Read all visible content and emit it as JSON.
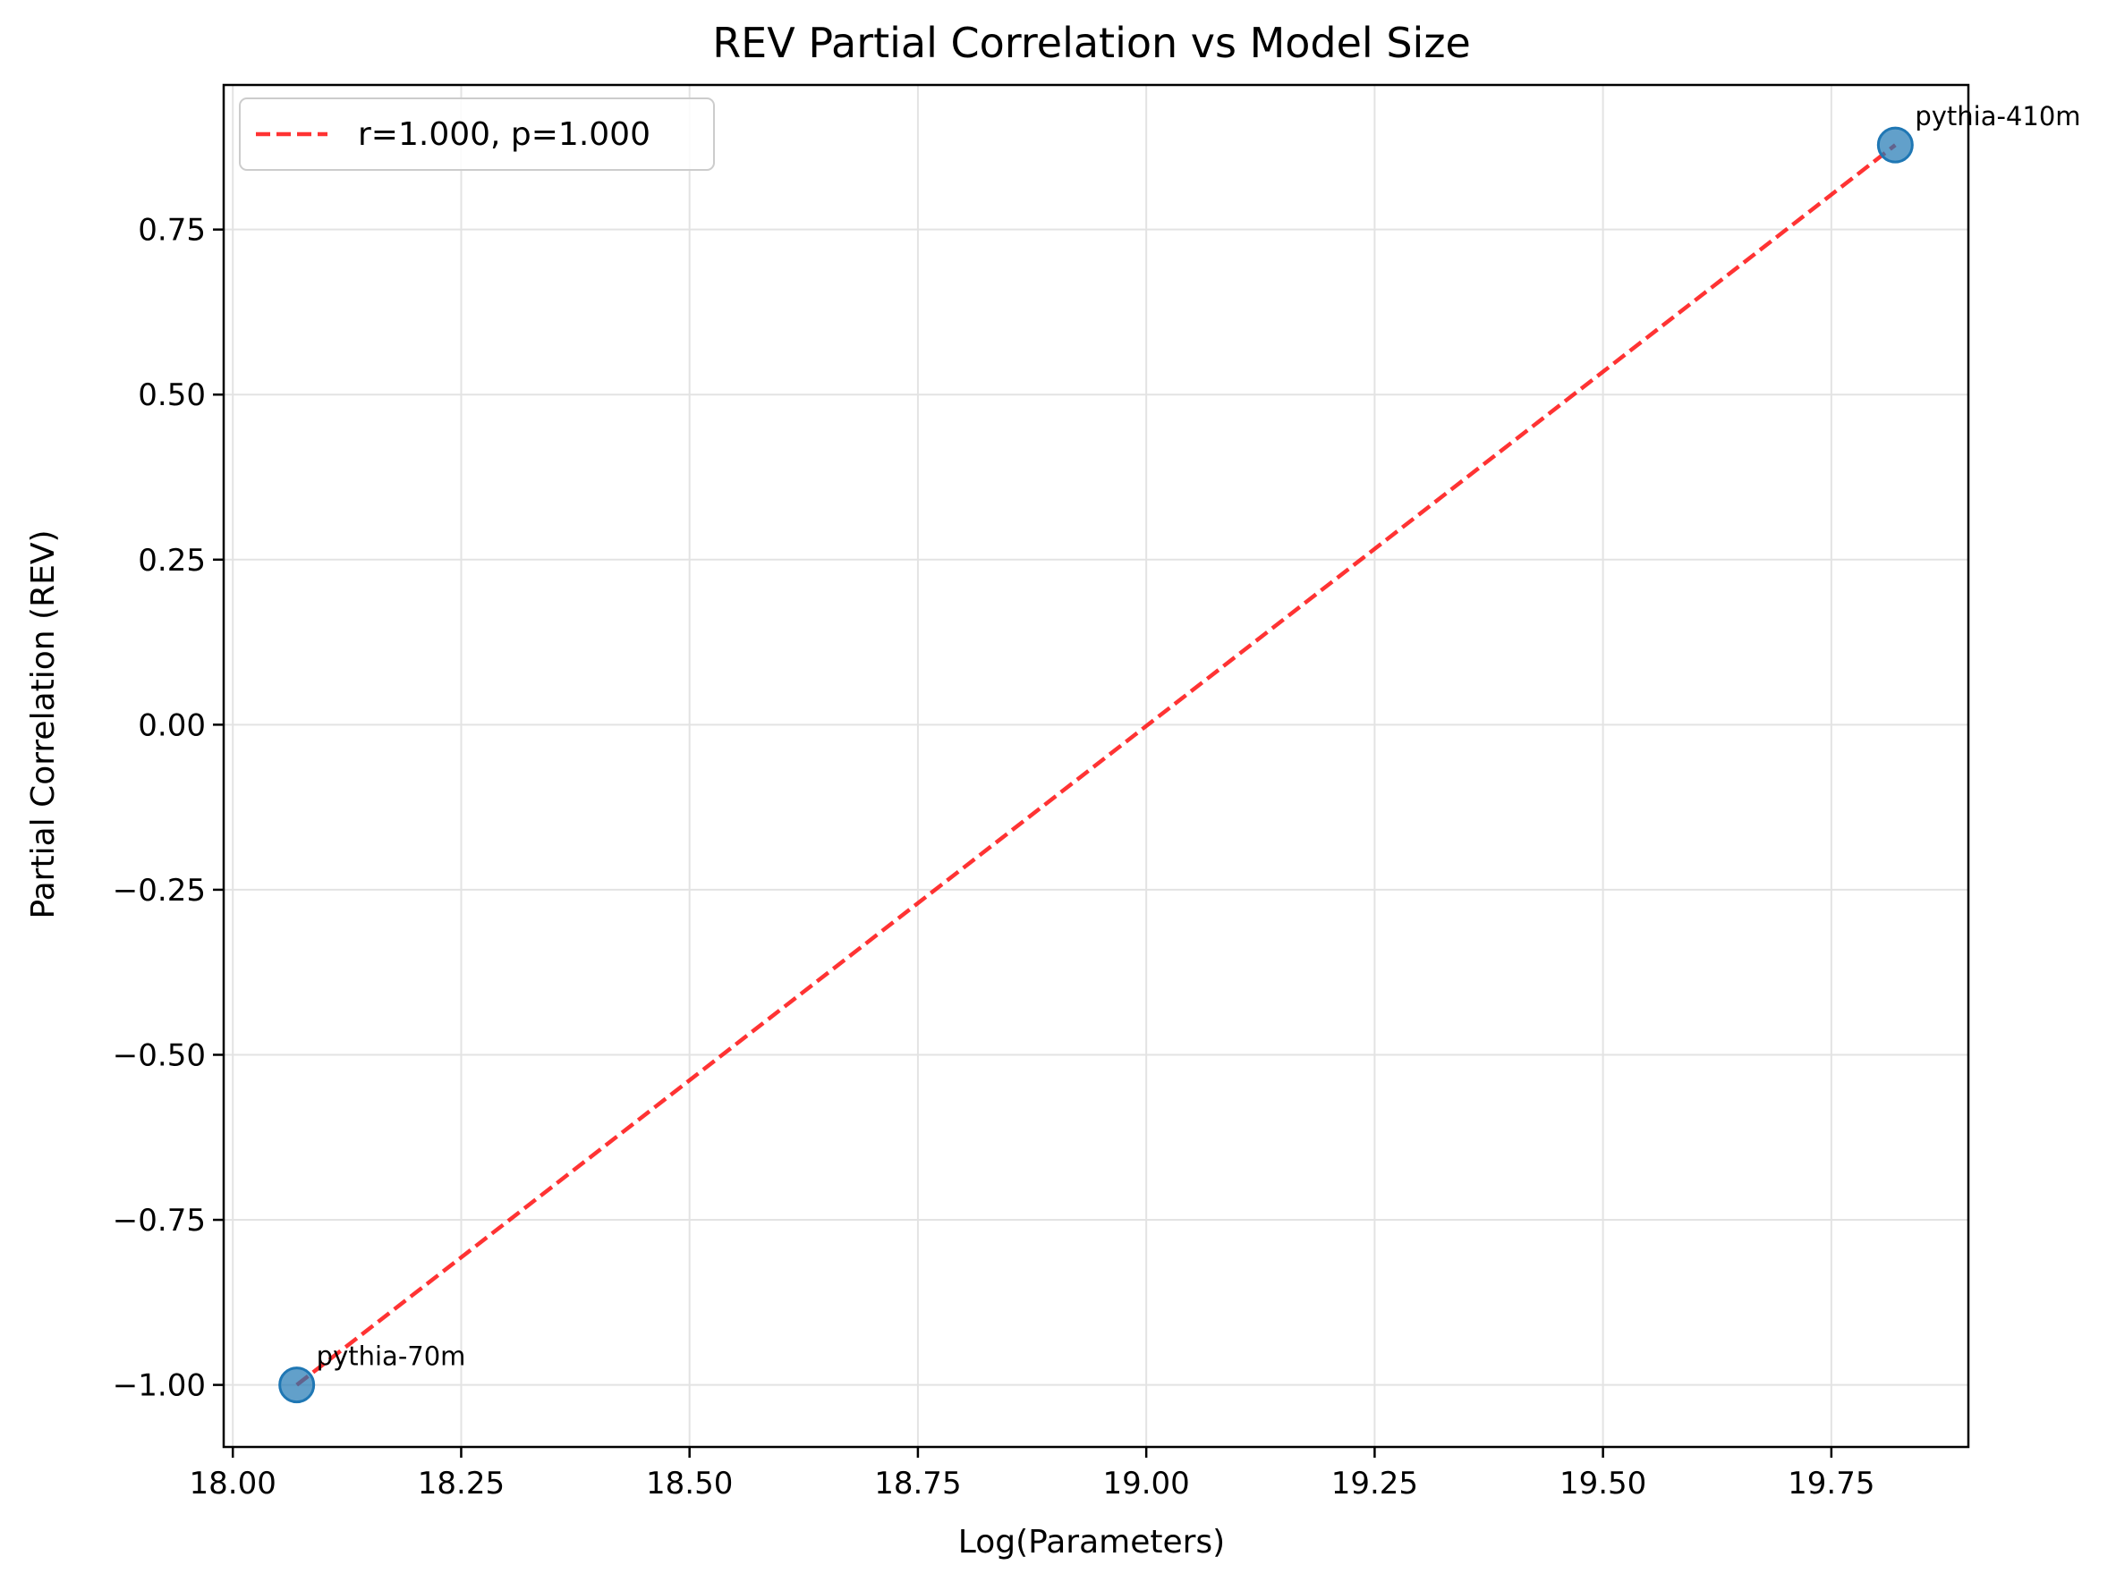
{
  "chart_data": {
    "type": "scatter",
    "title": "REV Partial Correlation vs Model Size",
    "xlabel": "Log(Parameters)",
    "ylabel": "Partial Correlation (REV)",
    "xlim": [
      17.99,
      19.9
    ],
    "ylim": [
      -1.094,
      0.969
    ],
    "xticks": [
      18.0,
      18.25,
      18.5,
      18.75,
      19.0,
      19.25,
      19.5,
      19.75
    ],
    "xtick_labels": [
      "18.00",
      "18.25",
      "18.50",
      "18.75",
      "19.00",
      "19.25",
      "19.50",
      "19.75"
    ],
    "yticks": [
      -1.0,
      -0.75,
      -0.5,
      -0.25,
      0.0,
      0.25,
      0.5,
      0.75
    ],
    "ytick_labels": [
      "−1.00",
      "−0.75",
      "−0.50",
      "−0.25",
      "0.00",
      "0.25",
      "0.50",
      "0.75"
    ],
    "grid": true,
    "legend_position": "top-left",
    "points": [
      {
        "label": "pythia-70m",
        "x": 18.07,
        "y": -1.0
      },
      {
        "label": "pythia-410m",
        "x": 19.82,
        "y": 0.878
      }
    ],
    "fit_line": {
      "label": "r=1.000, p=1.000",
      "x": [
        18.07,
        19.82
      ],
      "y": [
        -1.0,
        0.878
      ]
    },
    "colors": {
      "points": "#1f77b4",
      "fit_line": "#ff0000",
      "grid": "#e3e3e3"
    }
  }
}
